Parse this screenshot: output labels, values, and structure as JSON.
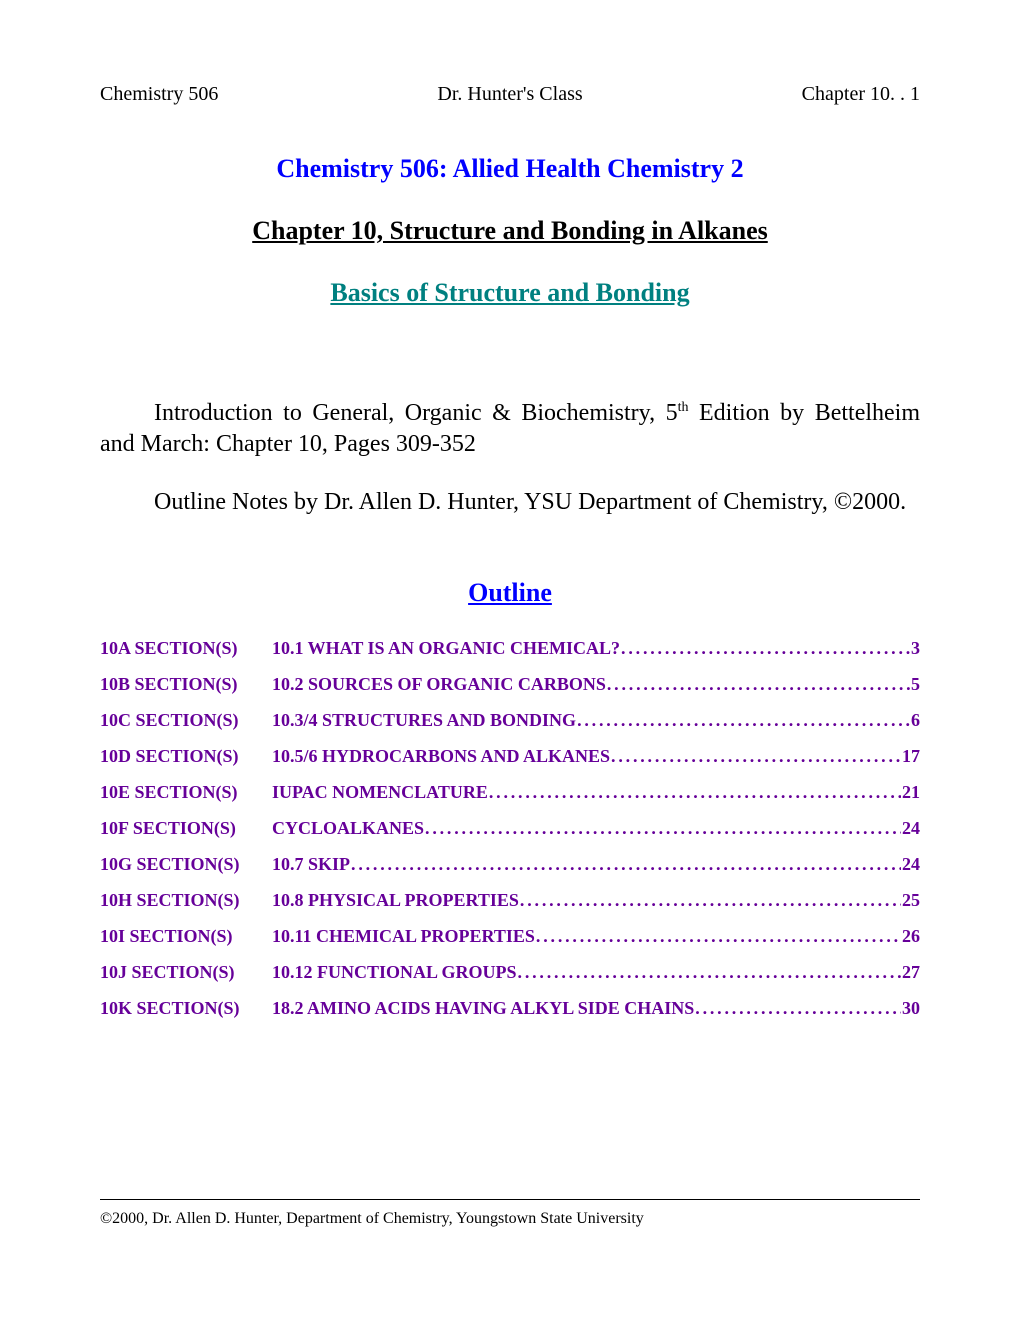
{
  "header": {
    "left": "Chemistry 506",
    "center": "Dr. Hunter's Class",
    "right": "Chapter 10.   .   1"
  },
  "titles": {
    "main": "Chemistry 506: Allied Health Chemistry 2",
    "chapter": "Chapter 10, Structure and Bonding in Alkanes",
    "subtitle": "Basics of Structure and Bonding"
  },
  "intro": {
    "para1_prefix": "Introduction to General, Organic & Biochemistry, 5",
    "para1_ordinal": "th",
    "para1_suffix": " Edition by Bettelheim and March: Chapter 10, Pages 309-352",
    "para2": "Outline Notes by Dr. Allen D. Hunter, YSU Department of Chemistry, ©2000."
  },
  "outline_heading": "Outline",
  "toc": [
    {
      "section": "10A SECTION(S)",
      "title": "10.1 WHAT IS AN ORGANIC CHEMICAL?",
      "page": "3"
    },
    {
      "section": "10B SECTION(S)",
      "title": "10.2 SOURCES OF ORGANIC CARBONS",
      "page": "5"
    },
    {
      "section": "10C SECTION(S)",
      "title": "10.3/4 STRUCTURES AND BONDING",
      "page": "6"
    },
    {
      "section": "10D SECTION(S)",
      "title": "10.5/6 HYDROCARBONS AND ALKANES",
      "page": "17"
    },
    {
      "section": "10E SECTION(S)",
      "title": "IUPAC NOMENCLATURE",
      "page": "21"
    },
    {
      "section": "10F SECTION(S)",
      "title": "CYCLOALKANES",
      "page": "24"
    },
    {
      "section": "10G SECTION(S)",
      "title": "10.7 SKIP",
      "page": "24"
    },
    {
      "section": "10H SECTION(S)",
      "title": "10.8 PHYSICAL PROPERTIES",
      "page": "25"
    },
    {
      "section": "10I SECTION(S)",
      "title": "10.11 CHEMICAL PROPERTIES",
      "page": "26"
    },
    {
      "section": "10J SECTION(S)",
      "title": "10.12 FUNCTIONAL GROUPS",
      "page": "27"
    },
    {
      "section": "10K SECTION(S)",
      "title": "18.2 AMINO ACIDS HAVING ALKYL SIDE CHAINS",
      "page": "30"
    }
  ],
  "footer": "©2000, Dr. Allen D. Hunter, Department of Chemistry, Youngstown State University",
  "colors": {
    "title_blue": "#0000ff",
    "subtitle_teal": "#008080",
    "toc_purple": "#660099",
    "text_black": "#000000",
    "background": "#ffffff"
  }
}
